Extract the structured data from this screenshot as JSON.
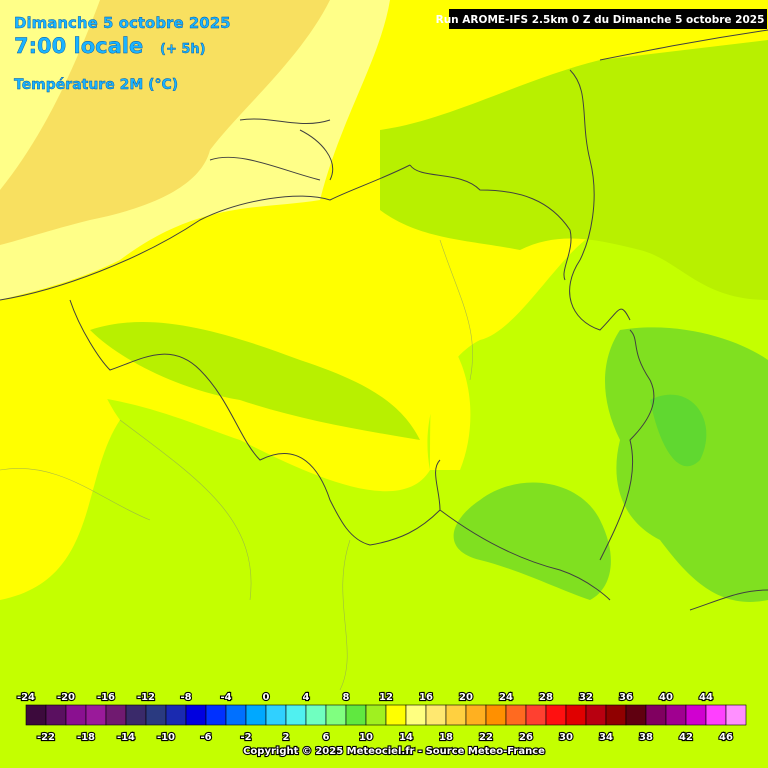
{
  "header": {
    "date": "Dimanche 5 octobre 2025",
    "time": "7:00 locale",
    "offset": "(+ 5h)",
    "variable": "Température 2M (°C)",
    "run": "Run AROME-IFS 2.5km 0 Z du Dimanche 5 octobre 2025"
  },
  "legend": {
    "values": [
      -24,
      -22,
      -20,
      -18,
      -16,
      -14,
      -12,
      -10,
      -8,
      -6,
      -4,
      -2,
      0,
      2,
      4,
      6,
      8,
      10,
      12,
      14,
      16,
      18,
      20,
      22,
      24,
      26,
      28,
      30,
      32,
      34,
      36,
      38,
      40,
      42,
      44,
      46
    ],
    "colors": [
      "#3c0a3c",
      "#5a1060",
      "#8a1090",
      "#9a1a9a",
      "#701a70",
      "#3a2a6a",
      "#2a3a80",
      "#1a2ab0",
      "#0000e0",
      "#0030ff",
      "#0070ff",
      "#00a8ff",
      "#30d0ff",
      "#50f0f0",
      "#70ffc0",
      "#80ff80",
      "#60e840",
      "#a0f020",
      "#ffff00",
      "#ffff80",
      "#ffe870",
      "#ffd040",
      "#ffb020",
      "#ff9000",
      "#ff6a20",
      "#ff4030",
      "#ff1010",
      "#e00000",
      "#b80010",
      "#900000",
      "#600010",
      "#800060",
      "#a00090",
      "#d000d0",
      "#ff40ff",
      "#ff90ff"
    ]
  },
  "footer": {
    "copyright": "Copyright © 2025 Meteociel.fr - Source Meteo-France"
  }
}
